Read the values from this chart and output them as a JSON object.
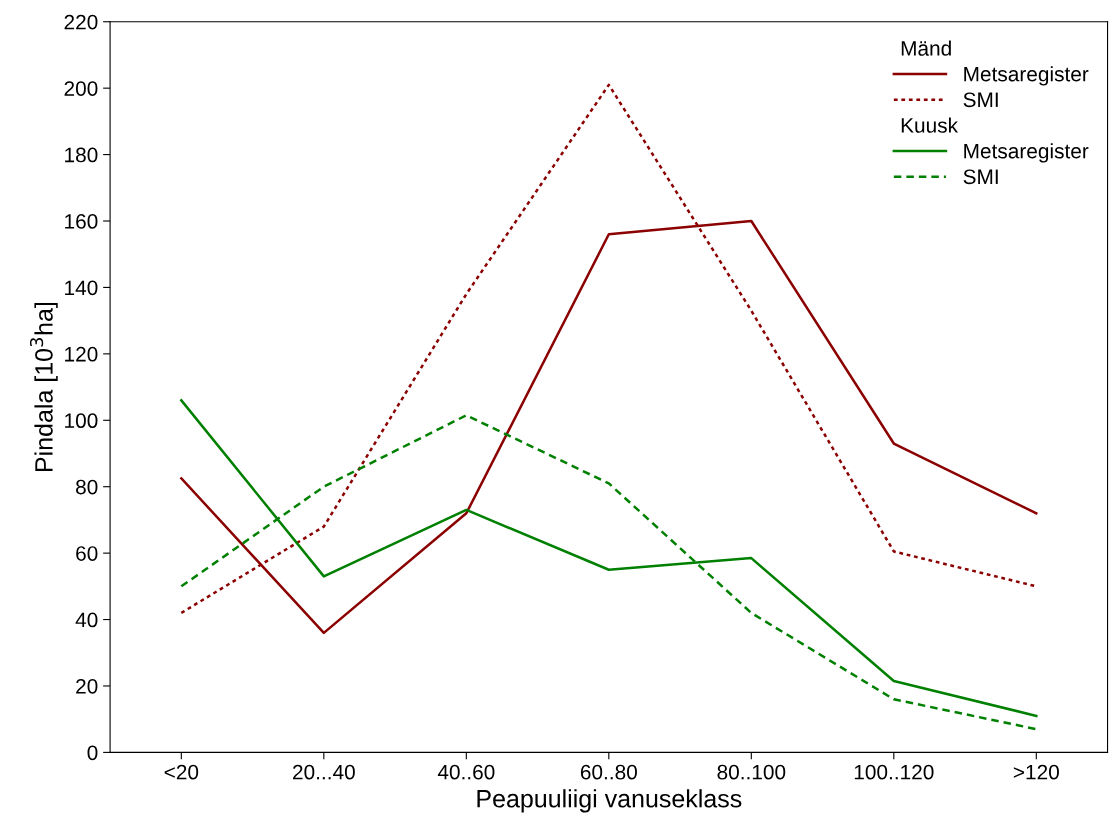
{
  "chart_data": {
    "type": "line",
    "xlabel": "Peapuuliigi vanuseklass",
    "ylabel": "Pindala [10$^{3}$ha]",
    "categories": [
      "<20",
      "20...40",
      "40..60",
      "60..80",
      "80..100",
      "100..120",
      ">120"
    ],
    "ylim": [
      0,
      220
    ],
    "yticks": [
      0,
      20,
      40,
      60,
      80,
      100,
      120,
      140,
      160,
      180,
      200,
      220
    ],
    "legend": "top right",
    "legend_title": [
      "Mänd",
      "Kuusk"
    ],
    "grid": false,
    "marker": "none",
    "series": [
      {
        "name": "Metsaregister",
        "color": "#8b0000",
        "line_style": "solid",
        "values": [
          82.5,
          36,
          72,
          156,
          160,
          93,
          72
        ]
      },
      {
        "name": "SMI",
        "color": "#8b0000",
        "line_style": "dotted",
        "values": [
          42,
          68,
          138,
          201,
          133,
          60.5,
          50
        ]
      },
      {
        "name": "Metsaregister",
        "color": "#008000",
        "line_style": "solid",
        "values": [
          106,
          53,
          73,
          55,
          58.5,
          21.5,
          11
        ]
      },
      {
        "name": "SMI",
        "color": "#008000",
        "line_style": "dashed",
        "values": [
          50,
          80,
          101.5,
          81,
          42,
          16,
          7
        ]
      }
    ]
  }
}
